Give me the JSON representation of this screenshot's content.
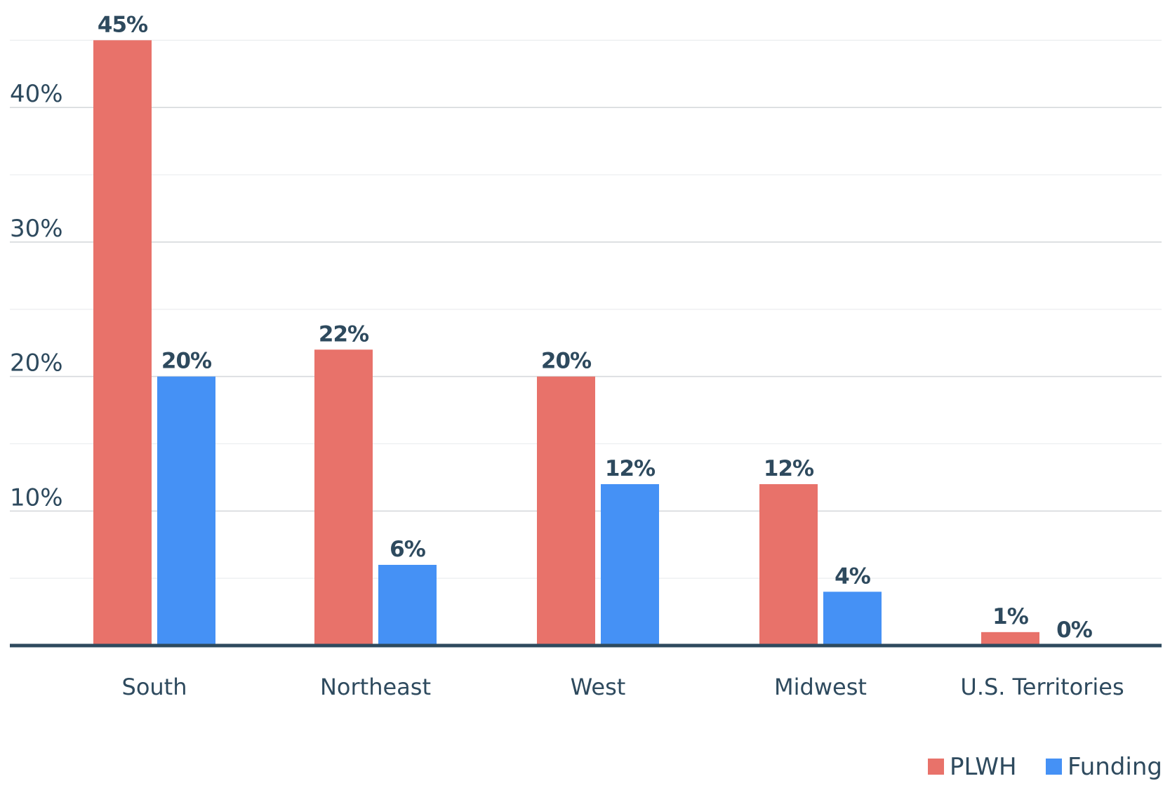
{
  "chart_data": {
    "type": "bar",
    "categories": [
      "South",
      "Northeast",
      "West",
      "Midwest",
      "U.S. Territories"
    ],
    "series": [
      {
        "name": "PLWH",
        "color": "#e8726a",
        "values": [
          45,
          22,
          20,
          12,
          1
        ],
        "labels": [
          "45%",
          "22%",
          "20%",
          "12%",
          "1%"
        ]
      },
      {
        "name": "Funding",
        "color": "#4591f5",
        "values": [
          20,
          6,
          12,
          4,
          0
        ],
        "labels": [
          "20%",
          "6%",
          "12%",
          "4%",
          "0%"
        ]
      }
    ],
    "yticks": [
      {
        "value": 10,
        "label": "10%"
      },
      {
        "value": 20,
        "label": "20%"
      },
      {
        "value": 30,
        "label": "30%"
      },
      {
        "value": 40,
        "label": "40%"
      }
    ],
    "ylim": [
      0,
      48
    ],
    "grid": true,
    "legend_position": "bottom-right",
    "title": "",
    "xlabel": "",
    "ylabel": ""
  }
}
